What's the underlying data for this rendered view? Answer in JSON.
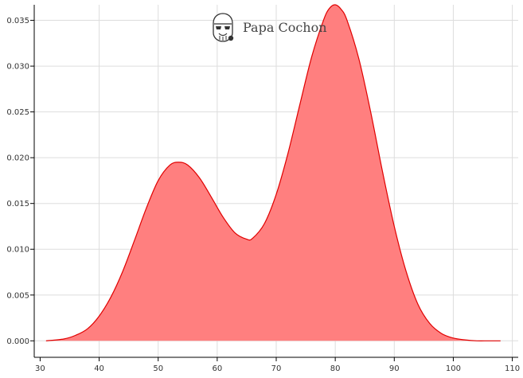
{
  "brand": {
    "name": "Papa Cochon",
    "icon": "stormtrooper-helmet-icon"
  },
  "chart_data": {
    "type": "area",
    "title": "",
    "xlabel": "",
    "ylabel": "",
    "xlim": [
      29,
      111
    ],
    "ylim": [
      -0.0018,
      0.0367
    ],
    "x_ticks": [
      30,
      40,
      50,
      60,
      70,
      80,
      90,
      100,
      110
    ],
    "y_ticks": [
      0.0,
      0.005,
      0.01,
      0.015,
      0.02,
      0.025,
      0.03,
      0.035
    ],
    "x_tick_labels": [
      "30",
      "40",
      "50",
      "60",
      "70",
      "80",
      "90",
      "100",
      "110"
    ],
    "y_tick_labels": [
      "0.000",
      "0.005",
      "0.010",
      "0.015",
      "0.020",
      "0.025",
      "0.030",
      "0.035"
    ],
    "grid": true,
    "series": [
      {
        "fill_color": "#ff7f7f",
        "line_color": "#e00000",
        "x": [
          31,
          34,
          36,
          38,
          40,
          42,
          44,
          46,
          48,
          50,
          52,
          53.5,
          55,
          57,
          59,
          61,
          63,
          65,
          66,
          68,
          70,
          72,
          74,
          76,
          78,
          79,
          80,
          81,
          82,
          84,
          86,
          88,
          90,
          92,
          94,
          96,
          98,
          100,
          102,
          104,
          106,
          108
        ],
        "y": [
          0.0,
          0.0002,
          0.0006,
          0.0013,
          0.0027,
          0.0048,
          0.0076,
          0.011,
          0.0145,
          0.0175,
          0.0192,
          0.0195,
          0.0192,
          0.0178,
          0.0157,
          0.0135,
          0.0118,
          0.0111,
          0.0112,
          0.0128,
          0.016,
          0.0205,
          0.0258,
          0.031,
          0.035,
          0.0363,
          0.0367,
          0.0362,
          0.035,
          0.0308,
          0.025,
          0.0185,
          0.0125,
          0.0076,
          0.004,
          0.0019,
          0.0008,
          0.0003,
          0.0001,
          0.0,
          0.0,
          0.0
        ]
      }
    ]
  }
}
